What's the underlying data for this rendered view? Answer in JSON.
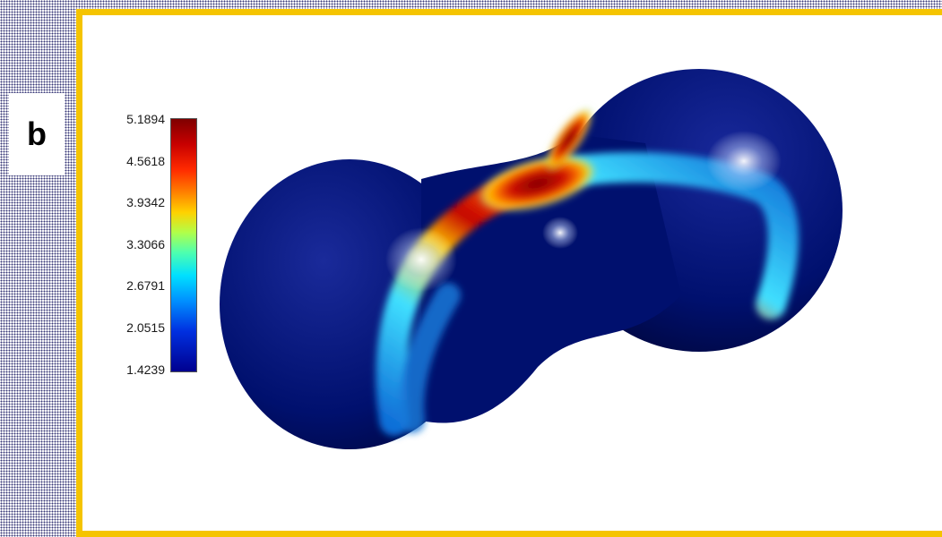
{
  "panel": {
    "label": "b"
  },
  "colorbar": {
    "ticks": [
      "5.1894",
      "4.5618",
      "3.9342",
      "3.3066",
      "2.6791",
      "2.0515",
      "1.4239"
    ],
    "min": 1.4239,
    "max": 5.1894,
    "colormap": "jet"
  },
  "colors": {
    "frame": "#f5c400",
    "surface_base": "#00106e",
    "band_low": "#0b5fd0",
    "band_mid": "#38e6ff",
    "band_high": "#ffd200",
    "band_peak": "#a80000"
  },
  "figure": {
    "type": "3d-surface-colormap",
    "shape": "dumbbell"
  }
}
